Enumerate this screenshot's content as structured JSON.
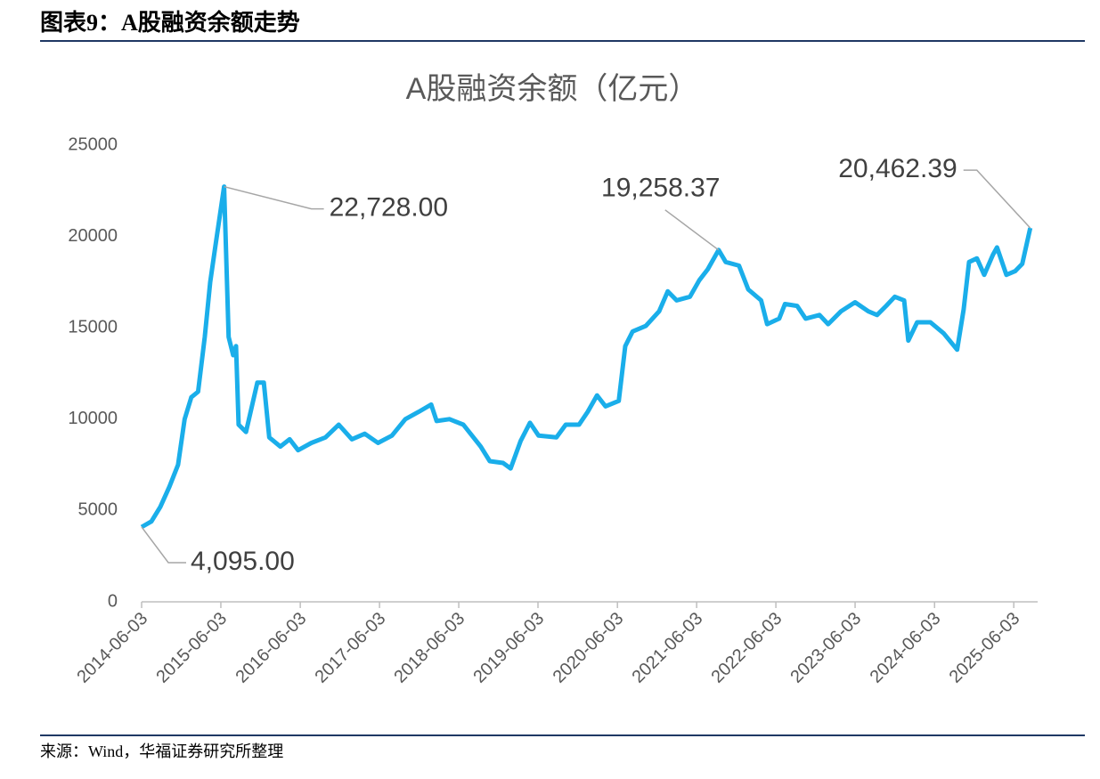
{
  "header": {
    "title": "图表9：A股融资余额走势"
  },
  "chart_data": {
    "type": "line",
    "title": "A股融资余额（亿元）",
    "x": [
      "2014-06-03",
      "2014-07-18",
      "2014-08-28",
      "2014-10-09",
      "2014-11-18",
      "2014-12-18",
      "2015-01-18",
      "2015-02-18",
      "2015-03-21",
      "2015-04-15",
      "2015-05-09",
      "2015-06-18",
      "2015-07-09",
      "2015-07-30",
      "2015-08-12",
      "2015-08-24",
      "2015-09-27",
      "2015-11-18",
      "2015-12-18",
      "2016-01-12",
      "2016-03-03",
      "2016-04-15",
      "2016-05-24",
      "2016-07-24",
      "2016-09-27",
      "2016-11-27",
      "2017-01-27",
      "2017-03-27",
      "2017-05-27",
      "2017-07-30",
      "2017-09-30",
      "2017-11-30",
      "2018-01-27",
      "2018-02-21",
      "2018-04-21",
      "2018-06-24",
      "2018-09-12",
      "2018-10-24",
      "2018-12-24",
      "2019-01-28",
      "2019-03-15",
      "2019-04-27",
      "2019-06-06",
      "2019-08-27",
      "2019-10-09",
      "2019-12-09",
      "2020-01-18",
      "2020-03-01",
      "2020-04-09",
      "2020-06-09",
      "2020-07-09",
      "2020-08-12",
      "2020-10-12",
      "2020-12-12",
      "2021-01-21",
      "2021-03-03",
      "2021-05-03",
      "2021-06-15",
      "2021-07-24",
      "2021-09-12",
      "2021-10-15",
      "2021-12-15",
      "2022-01-27",
      "2022-03-27",
      "2022-04-24",
      "2022-06-18",
      "2022-07-15",
      "2022-09-09",
      "2022-10-18",
      "2022-12-21",
      "2023-01-30",
      "2023-03-30",
      "2023-06-03",
      "2023-08-03",
      "2023-09-12",
      "2023-10-24",
      "2023-12-03",
      "2024-01-15",
      "2024-02-03",
      "2024-03-15",
      "2024-05-15",
      "2024-07-15",
      "2024-09-15",
      "2024-10-15",
      "2024-11-09",
      "2024-12-15",
      "2025-01-18",
      "2025-02-27",
      "2025-03-18",
      "2025-04-30",
      "2025-06-09",
      "2025-07-12",
      "2025-08-18"
    ],
    "series": [
      {
        "name": "A股融资余额",
        "color": "#1aaeea",
        "values": [
          4095,
          4400,
          5200,
          6300,
          7500,
          10000,
          11200,
          11500,
          14500,
          17500,
          19500,
          22728,
          14500,
          13500,
          14000,
          9700,
          9300,
          12000,
          12000,
          9000,
          8500,
          8900,
          8300,
          8700,
          9000,
          9700,
          8900,
          9200,
          8700,
          9100,
          10000,
          10400,
          10800,
          9900,
          10000,
          9700,
          8500,
          7700,
          7600,
          7300,
          8800,
          9800,
          9100,
          9000,
          9700,
          9700,
          10400,
          11300,
          10700,
          11000,
          14000,
          14800,
          15100,
          15900,
          17000,
          16500,
          16700,
          17600,
          18200,
          19258.37,
          18600,
          18400,
          17100,
          16500,
          15200,
          15500,
          16300,
          16200,
          15500,
          15700,
          15200,
          15900,
          16400,
          15900,
          15700,
          16200,
          16700,
          16500,
          14300,
          15300,
          15300,
          14700,
          13800,
          16000,
          18600,
          18800,
          17900,
          19000,
          19400,
          17900,
          18100,
          18500,
          20462.39
        ],
        "value_labels": [
          "4,095.00",
          null,
          null,
          null,
          null,
          null,
          null,
          null,
          null,
          null,
          null,
          "22,728.00",
          null,
          null,
          null,
          null,
          null,
          null,
          null,
          null,
          null,
          null,
          null,
          null,
          null,
          null,
          null,
          null,
          null,
          null,
          null,
          null,
          null,
          null,
          null,
          null,
          null,
          null,
          null,
          null,
          null,
          null,
          null,
          null,
          null,
          null,
          null,
          null,
          null,
          null,
          null,
          null,
          null,
          null,
          null,
          null,
          null,
          null,
          null,
          "19,258.37",
          null,
          null,
          null,
          null,
          null,
          null,
          null,
          null,
          null,
          null,
          null,
          null,
          null,
          null,
          null,
          null,
          null,
          null,
          null,
          null,
          null,
          null,
          null,
          null,
          null,
          null,
          null,
          null,
          null,
          null,
          null,
          null,
          "20,462.39"
        ]
      }
    ],
    "xlim": [
      "2014-06-03",
      "2025-09-21"
    ],
    "xticks": [
      "2014-06-03",
      "2015-06-03",
      "2016-06-03",
      "2017-06-03",
      "2018-06-03",
      "2019-06-03",
      "2020-06-03",
      "2021-06-03",
      "2022-06-03",
      "2023-06-03",
      "2024-06-03",
      "2025-06-03"
    ],
    "ylim": [
      0,
      25000
    ],
    "yticks": [
      0,
      5000,
      10000,
      15000,
      20000,
      25000
    ],
    "grid": false
  },
  "source": "来源：Wind，华福证券研究所整理"
}
